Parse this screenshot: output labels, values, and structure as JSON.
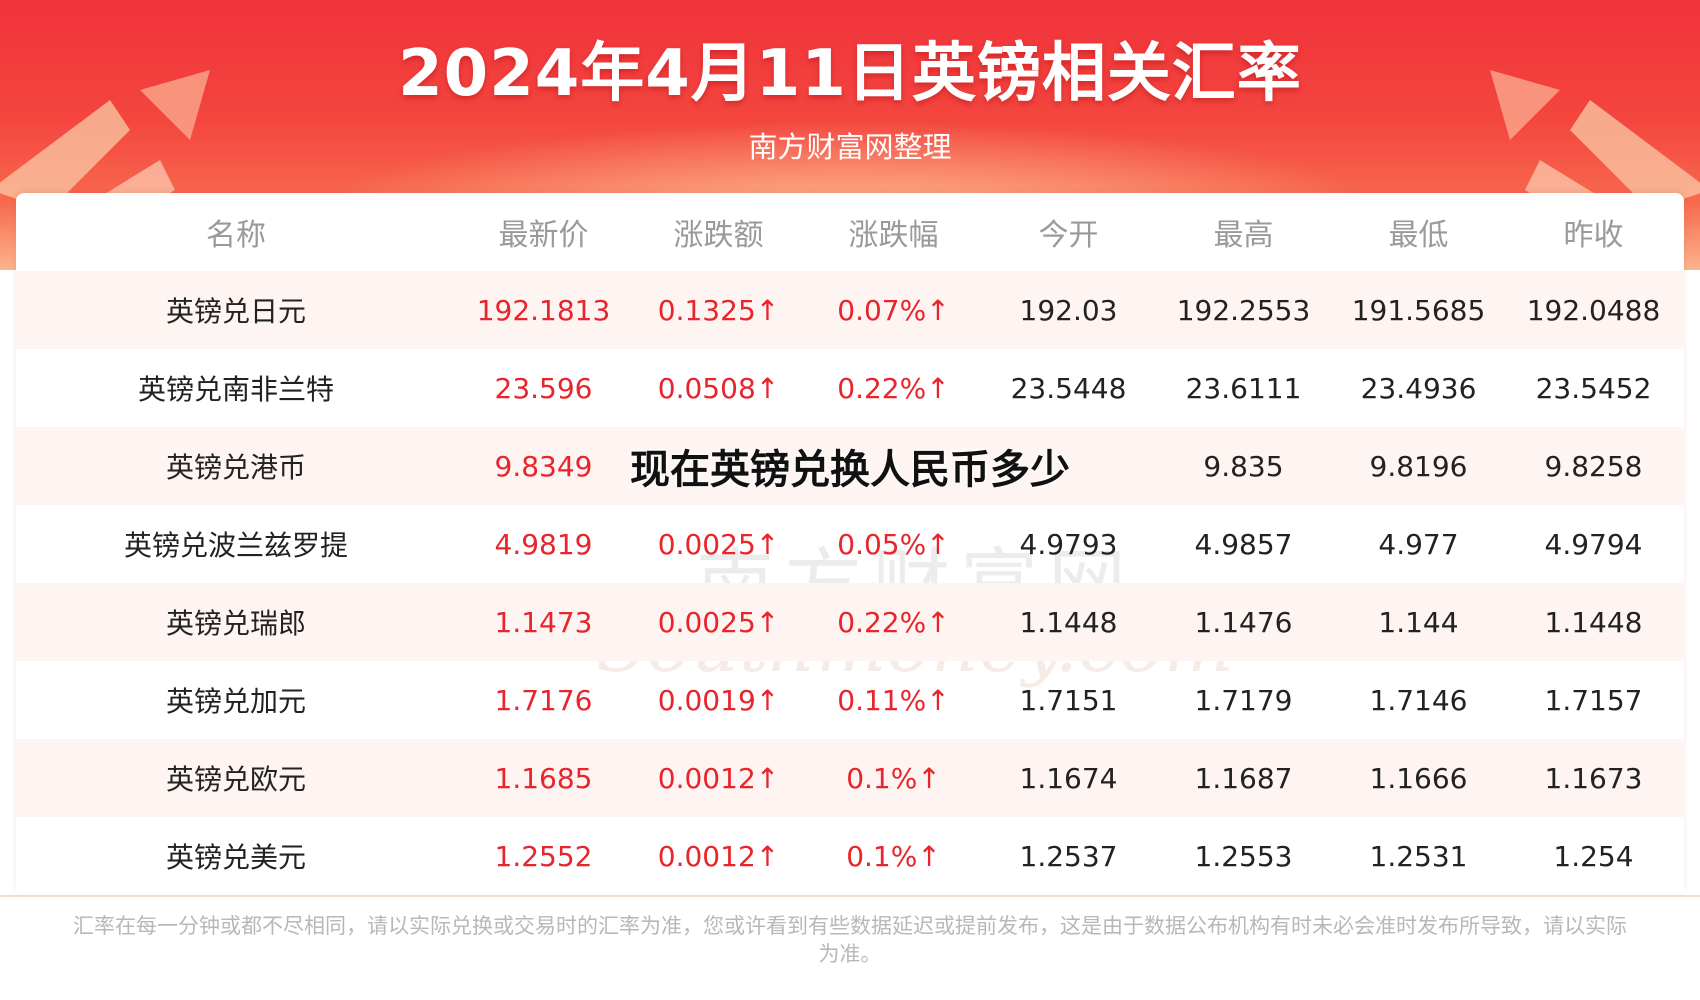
{
  "header": {
    "title": "2024年4月11日英镑相关汇率",
    "subtitle": "南方财富网整理"
  },
  "table": {
    "columns": [
      "名称",
      "最新价",
      "涨跌额",
      "涨跌幅",
      "今开",
      "最高",
      "最低",
      "昨收"
    ],
    "rows": [
      {
        "name": "英镑兑日元",
        "latest": "192.1813",
        "change": "0.1325↑",
        "change_pct": "0.07%↑",
        "open": "192.03",
        "high": "192.2553",
        "low": "191.5685",
        "prev_close": "192.0488"
      },
      {
        "name": "英镑兑南非兰特",
        "latest": "23.596",
        "change": "0.0508↑",
        "change_pct": "0.22%↑",
        "open": "23.5448",
        "high": "23.6111",
        "low": "23.4936",
        "prev_close": "23.5452"
      },
      {
        "name": "英镑兑港币",
        "latest": "9.8349",
        "change": "",
        "change_pct": "",
        "open": "",
        "high": "9.835",
        "low": "9.8196",
        "prev_close": "9.8258"
      },
      {
        "name": "英镑兑波兰兹罗提",
        "latest": "4.9819",
        "change": "0.0025↑",
        "change_pct": "0.05%↑",
        "open": "4.9793",
        "high": "4.9857",
        "low": "4.977",
        "prev_close": "4.9794"
      },
      {
        "name": "英镑兑瑞郎",
        "latest": "1.1473",
        "change": "0.0025↑",
        "change_pct": "0.22%↑",
        "open": "1.1448",
        "high": "1.1476",
        "low": "1.144",
        "prev_close": "1.1448"
      },
      {
        "name": "英镑兑加元",
        "latest": "1.7176",
        "change": "0.0019↑",
        "change_pct": "0.11%↑",
        "open": "1.7151",
        "high": "1.7179",
        "low": "1.7146",
        "prev_close": "1.7157"
      },
      {
        "name": "英镑兑欧元",
        "latest": "1.1685",
        "change": "0.0012↑",
        "change_pct": "0.1%↑",
        "open": "1.1674",
        "high": "1.1687",
        "low": "1.1666",
        "prev_close": "1.1673"
      },
      {
        "name": "英镑兑美元",
        "latest": "1.2552",
        "change": "0.0012↑",
        "change_pct": "0.1%↑",
        "open": "1.2537",
        "high": "1.2553",
        "low": "1.2531",
        "prev_close": "1.254"
      }
    ]
  },
  "overlay_text": "现在英镑兑换人民币多少",
  "watermark": {
    "cn": "南方财富网",
    "en": "Southmoney.com"
  },
  "footnote": "汇率在每一分钟或都不尽相同，请以实际兑换或交易时的汇率为准，您或许看到有些数据延迟或提前发布，这是由于数据公布机构有时未必会准时发布所导致，请以实际为准。",
  "colors": {
    "accent_red": "#e8242c",
    "banner_red": "#f0323a",
    "row_shade": "#fef5f2"
  }
}
